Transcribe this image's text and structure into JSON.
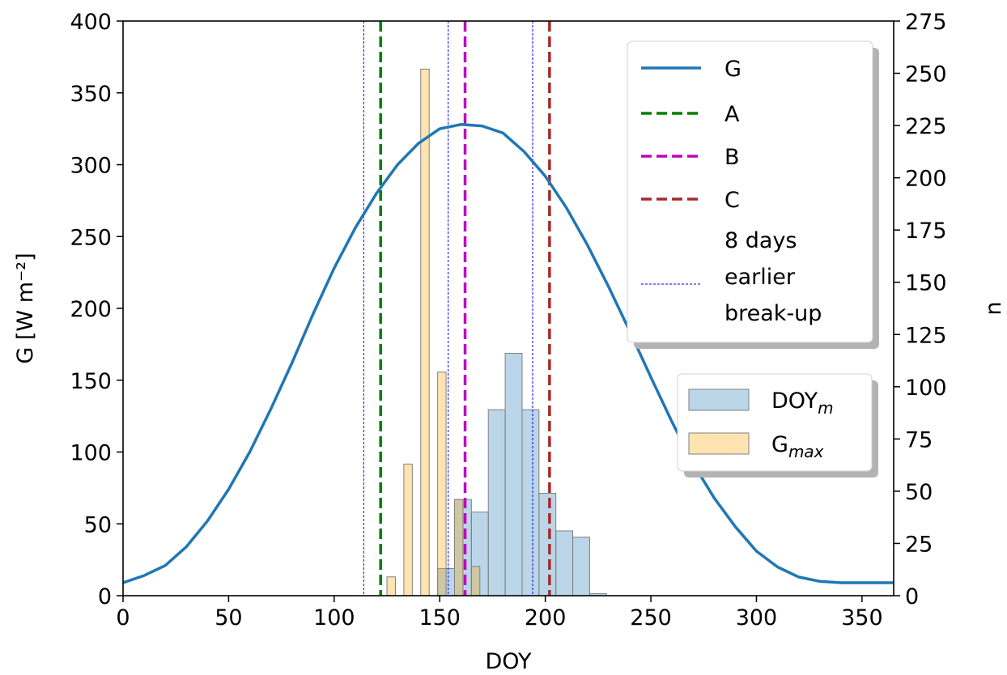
{
  "chart_data": {
    "type": "line",
    "xlabel": "DOY",
    "ylabel_left": "G [W m⁻²]",
    "ylabel_right": "n",
    "xlim": [
      0,
      365
    ],
    "ylim_left": [
      0,
      400
    ],
    "ylim_right": [
      0,
      275
    ],
    "xticks": [
      0,
      50,
      100,
      150,
      200,
      250,
      300,
      350
    ],
    "yticks_left": [
      0,
      50,
      100,
      150,
      200,
      250,
      300,
      350,
      400
    ],
    "yticks_right": [
      0,
      25,
      50,
      75,
      100,
      125,
      150,
      175,
      200,
      225,
      250,
      275
    ],
    "grid": false,
    "curve": {
      "name": "G",
      "color": "#1f77b4",
      "x": [
        0,
        10,
        20,
        30,
        40,
        50,
        60,
        70,
        80,
        90,
        100,
        110,
        120,
        130,
        140,
        150,
        160,
        170,
        180,
        190,
        200,
        210,
        220,
        230,
        240,
        250,
        260,
        270,
        280,
        290,
        300,
        310,
        320,
        330,
        340,
        350,
        365
      ],
      "y": [
        9,
        14,
        21,
        34,
        52,
        74,
        100,
        130,
        162,
        196,
        228,
        256,
        280,
        300,
        315,
        325,
        328,
        327,
        322,
        309,
        292,
        270,
        244,
        215,
        184,
        152,
        121,
        92,
        68,
        48,
        31,
        20,
        13,
        10,
        9,
        9,
        9
      ]
    },
    "vlines": [
      {
        "name": "A",
        "x": 122,
        "color": "#008000",
        "style": "dashed"
      },
      {
        "name": "B",
        "x": 162,
        "color": "#bf00bf",
        "style": "dashed"
      },
      {
        "name": "C",
        "x": 202,
        "color": "#a52a2a",
        "style": "dashed"
      }
    ],
    "vlines_minor": {
      "name": "8 days earlier break-up",
      "color": "#0000ff",
      "x": [
        114,
        154,
        194
      ]
    },
    "histograms": [
      {
        "name": "DOY_m",
        "label_main": "DOY",
        "label_sub": "m",
        "color": "#1f77b4",
        "bin_start": 125,
        "bin_width": 8,
        "counts": [
          0,
          0,
          0,
          13,
          46,
          40,
          89,
          116,
          89,
          49,
          31,
          28,
          1
        ]
      },
      {
        "name": "G_max",
        "label_main": "G",
        "label_sub": "max",
        "color": "#ffa500",
        "bin_start": 125,
        "bin_width": 4,
        "counts": [
          9,
          0,
          63,
          0,
          252,
          0,
          107,
          0,
          46,
          0,
          14,
          0
        ]
      }
    ],
    "legends": [
      {
        "placement": "upper-right",
        "entries": [
          "G",
          "A",
          "B",
          "C",
          "8 days earlier break-up"
        ]
      },
      {
        "placement": "center-right",
        "entries": [
          "DOY_m",
          "G_max"
        ]
      }
    ],
    "legend_minor_lines": [
      "8 days",
      "earlier",
      "break-up"
    ]
  }
}
